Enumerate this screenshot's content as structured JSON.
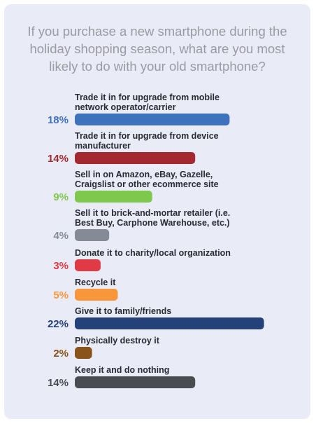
{
  "title": "If you purchase a new smartphone during the holiday shopping season, what are you most likely to do with your old smartphone?",
  "chart_data": {
    "type": "bar",
    "orientation": "horizontal",
    "unit": "%",
    "categories": [
      [
        "Trade it in for upgrade from mobile",
        "network operator/carrier"
      ],
      [
        "Trade it in for upgrade from device",
        "manufacturer"
      ],
      [
        "Sell in on Amazon, eBay, Gazelle,",
        "Craigslist or other ecommerce site"
      ],
      [
        "Sell it to brick-and-mortar retailer (i.e.",
        "Best Buy, Carphone Warehouse, etc.)"
      ],
      [
        "Donate it to charity/local organization"
      ],
      [
        "Recycle it"
      ],
      [
        "Give it to family/friends"
      ],
      [
        "Physically destroy it"
      ],
      [
        "Keep it and do nothing"
      ]
    ],
    "values": [
      18,
      14,
      9,
      4,
      3,
      5,
      22,
      2,
      14
    ],
    "value_labels": [
      "18%",
      "14%",
      "9%",
      "4%",
      "3%",
      "5%",
      "22%",
      "2%",
      "14%"
    ],
    "colors": [
      "#3f72bd",
      "#a4282f",
      "#7ec94d",
      "#858b96",
      "#e03a45",
      "#f7963b",
      "#25417a",
      "#8a5319",
      "#4b4b52"
    ],
    "grid": false,
    "legend": "none"
  }
}
